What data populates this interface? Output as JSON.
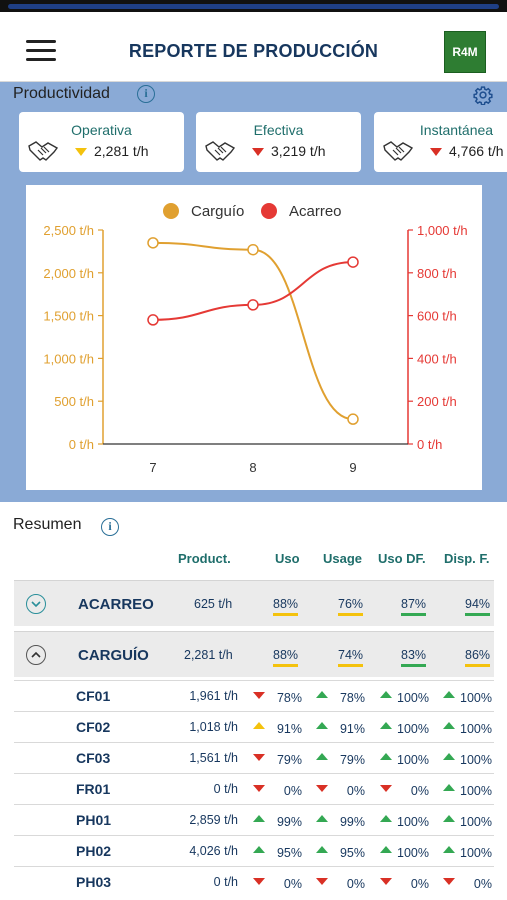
{
  "header": {
    "title": "REPORTE DE PRODUCCIÓN",
    "logo_text": "R4M"
  },
  "productividad": {
    "label": "Productividad",
    "cards": [
      {
        "title": "Operativa",
        "value": "2,281 t/h",
        "trend": "down",
        "trend_color": "#f4c20d"
      },
      {
        "title": "Efectiva",
        "value": "3,219 t/h",
        "trend": "down",
        "trend_color": "#d93025"
      },
      {
        "title": "Instantánea",
        "value": "4,766 t/h",
        "trend": "down",
        "trend_color": "#d93025"
      }
    ]
  },
  "chart_data": {
    "type": "line",
    "categories": [
      "7",
      "8",
      "9"
    ],
    "series": [
      {
        "name": "Carguío",
        "axis": "left",
        "color": "#e0a030",
        "values": [
          2350,
          2270,
          290
        ]
      },
      {
        "name": "Acarreo",
        "axis": "right",
        "color": "#e53935",
        "values": [
          580,
          650,
          850
        ]
      }
    ],
    "y_left": {
      "ticks": [
        "0 t/h",
        "500 t/h",
        "1,000 t/h",
        "1,500 t/h",
        "2,000 t/h",
        "2,500 t/h"
      ],
      "ylim": [
        0,
        2500
      ]
    },
    "y_right": {
      "ticks": [
        "0 t/h",
        "200 t/h",
        "400 t/h",
        "600 t/h",
        "800 t/h",
        "1,000 t/h"
      ],
      "ylim": [
        0,
        1000
      ]
    },
    "legend_position": "top",
    "grid": false
  },
  "resumen": {
    "label": "Resumen",
    "columns": [
      "Product.",
      "Uso",
      "Usage",
      "Uso DF.",
      "Disp. F."
    ],
    "groups": [
      {
        "name": "ACARREO",
        "expanded": false,
        "product": "625 t/h",
        "uso": "88%",
        "usage": "76%",
        "uso_df": "87%",
        "disp_f": "94%"
      },
      {
        "name": "CARGUÍO",
        "expanded": true,
        "product": "2,281 t/h",
        "uso": "88%",
        "usage": "74%",
        "uso_df": "83%",
        "disp_f": "86%"
      }
    ],
    "rows": [
      {
        "name": "CF01",
        "product": "1,961 t/h",
        "uso": "78%",
        "uso_trend": "down-red",
        "usage": "78%",
        "usage_trend": "up-green",
        "uso_df": "100%",
        "uso_df_trend": "up-green",
        "disp_f": "100%",
        "disp_f_trend": "up-green"
      },
      {
        "name": "CF02",
        "product": "1,018 t/h",
        "uso": "91%",
        "uso_trend": "up-yellow",
        "usage": "91%",
        "usage_trend": "up-green",
        "uso_df": "100%",
        "uso_df_trend": "up-green",
        "disp_f": "100%",
        "disp_f_trend": "up-green"
      },
      {
        "name": "CF03",
        "product": "1,561 t/h",
        "uso": "79%",
        "uso_trend": "down-red",
        "usage": "79%",
        "usage_trend": "up-green",
        "uso_df": "100%",
        "uso_df_trend": "up-green",
        "disp_f": "100%",
        "disp_f_trend": "up-green"
      },
      {
        "name": "FR01",
        "product": "0 t/h",
        "uso": "0%",
        "uso_trend": "down-red",
        "usage": "0%",
        "usage_trend": "down-red",
        "uso_df": "0%",
        "uso_df_trend": "down-red",
        "disp_f": "100%",
        "disp_f_trend": "up-green"
      },
      {
        "name": "PH01",
        "product": "2,859 t/h",
        "uso": "99%",
        "uso_trend": "up-green",
        "usage": "99%",
        "usage_trend": "up-green",
        "uso_df": "100%",
        "uso_df_trend": "up-green",
        "disp_f": "100%",
        "disp_f_trend": "up-green"
      },
      {
        "name": "PH02",
        "product": "4,026 t/h",
        "uso": "95%",
        "uso_trend": "up-green",
        "usage": "95%",
        "usage_trend": "up-green",
        "uso_df": "100%",
        "uso_df_trend": "up-green",
        "disp_f": "100%",
        "disp_f_trend": "up-green"
      },
      {
        "name": "PH03",
        "product": "0 t/h",
        "uso": "0%",
        "uso_trend": "down-red",
        "usage": "0%",
        "usage_trend": "down-red",
        "uso_df": "0%",
        "uso_df_trend": "down-red",
        "disp_f": "0%",
        "disp_f_trend": "down-red"
      }
    ]
  }
}
